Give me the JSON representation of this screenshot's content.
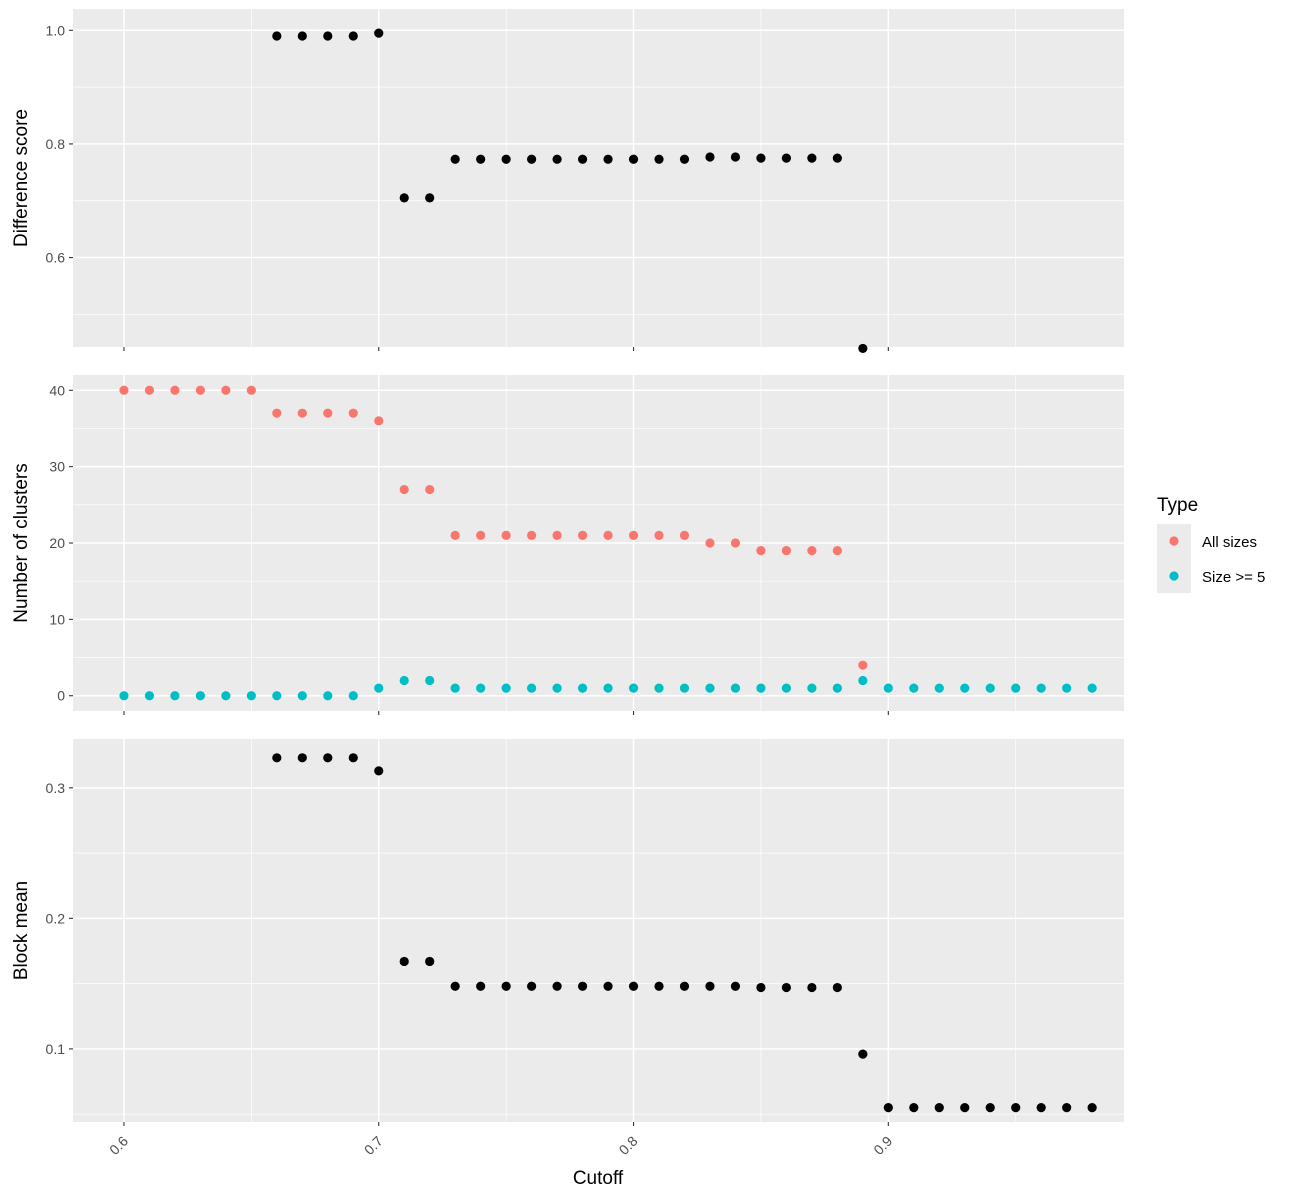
{
  "chart_data": {
    "type": "scatter",
    "xlabel": "Cutoff",
    "x_ticks": [
      0.6,
      0.7,
      0.8,
      0.9
    ],
    "xlim": [
      0.58,
      0.9925
    ],
    "grid": true,
    "background": "#ebebeb",
    "legend": {
      "title": "Type",
      "position": "right",
      "entries": [
        {
          "label": "All sizes",
          "color": "#f8766d"
        },
        {
          "label": "Size >= 5",
          "color": "#00bfc4"
        }
      ]
    },
    "panels": [
      {
        "ylabel": "Difference score",
        "ylim": [
          0.4425,
          1.0375
        ],
        "y_ticks": [
          0.6,
          0.8,
          1.0
        ],
        "y_tick_labels": [
          "0.6",
          "0.8",
          "1.0"
        ],
        "series": [
          {
            "color": "#000000",
            "x": [
              0.66,
              0.67,
              0.68,
              0.69,
              0.7,
              0.71,
              0.72,
              0.73,
              0.74,
              0.75,
              0.76,
              0.77,
              0.78,
              0.79,
              0.8,
              0.81,
              0.82,
              0.83,
              0.84,
              0.85,
              0.86,
              0.87,
              0.88,
              0.89
            ],
            "y": [
              0.99,
              0.99,
              0.99,
              0.99,
              0.995,
              0.705,
              0.705,
              0.773,
              0.773,
              0.773,
              0.773,
              0.773,
              0.773,
              0.773,
              0.773,
              0.773,
              0.773,
              0.777,
              0.777,
              0.775,
              0.775,
              0.775,
              0.775,
              0.44
            ]
          }
        ]
      },
      {
        "ylabel": "Number of clusters",
        "ylim": [
          -2,
          42
        ],
        "y_ticks": [
          0,
          10,
          20,
          30,
          40
        ],
        "y_tick_labels": [
          "0",
          "10",
          "20",
          "30",
          "40"
        ],
        "series": [
          {
            "name": "All sizes",
            "color": "#f8766d",
            "x": [
              0.6,
              0.61,
              0.62,
              0.63,
              0.64,
              0.65,
              0.66,
              0.67,
              0.68,
              0.69,
              0.7,
              0.71,
              0.72,
              0.73,
              0.74,
              0.75,
              0.76,
              0.77,
              0.78,
              0.79,
              0.8,
              0.81,
              0.82,
              0.83,
              0.84,
              0.85,
              0.86,
              0.87,
              0.88,
              0.89
            ],
            "y": [
              40,
              40,
              40,
              40,
              40,
              40,
              37,
              37,
              37,
              37,
              36,
              27,
              27,
              21,
              21,
              21,
              21,
              21,
              21,
              21,
              21,
              21,
              21,
              20,
              20,
              19,
              19,
              19,
              19,
              4
            ]
          },
          {
            "name": "Size >= 5",
            "color": "#00bfc4",
            "x": [
              0.6,
              0.61,
              0.62,
              0.63,
              0.64,
              0.65,
              0.66,
              0.67,
              0.68,
              0.69,
              0.7,
              0.71,
              0.72,
              0.73,
              0.74,
              0.75,
              0.76,
              0.77,
              0.78,
              0.79,
              0.8,
              0.81,
              0.82,
              0.83,
              0.84,
              0.85,
              0.86,
              0.87,
              0.88,
              0.89,
              0.9,
              0.91,
              0.92,
              0.93,
              0.94,
              0.95,
              0.96,
              0.97,
              0.98
            ],
            "y": [
              0,
              0,
              0,
              0,
              0,
              0,
              0,
              0,
              0,
              0,
              1,
              2,
              2,
              1,
              1,
              1,
              1,
              1,
              1,
              1,
              1,
              1,
              1,
              1,
              1,
              1,
              1,
              1,
              1,
              2,
              1,
              1,
              1,
              1,
              1,
              1,
              1,
              1,
              1
            ]
          }
        ]
      },
      {
        "ylabel": "Block mean",
        "ylim": [
          0.044,
          0.3374
        ],
        "y_ticks": [
          0.1,
          0.2,
          0.3
        ],
        "y_tick_labels": [
          "0.1",
          "0.2",
          "0.3"
        ],
        "series": [
          {
            "color": "#000000",
            "x": [
              0.66,
              0.67,
              0.68,
              0.69,
              0.7,
              0.71,
              0.72,
              0.73,
              0.74,
              0.75,
              0.76,
              0.77,
              0.78,
              0.79,
              0.8,
              0.81,
              0.82,
              0.83,
              0.84,
              0.85,
              0.86,
              0.87,
              0.88,
              0.89,
              0.9,
              0.91,
              0.92,
              0.93,
              0.94,
              0.95,
              0.96,
              0.97,
              0.98
            ],
            "y": [
              0.323,
              0.323,
              0.323,
              0.323,
              0.313,
              0.167,
              0.167,
              0.148,
              0.148,
              0.148,
              0.148,
              0.148,
              0.148,
              0.148,
              0.148,
              0.148,
              0.148,
              0.148,
              0.148,
              0.147,
              0.147,
              0.147,
              0.147,
              0.096,
              0.055,
              0.055,
              0.055,
              0.055,
              0.055,
              0.055,
              0.055,
              0.055,
              0.055
            ]
          }
        ]
      }
    ]
  }
}
